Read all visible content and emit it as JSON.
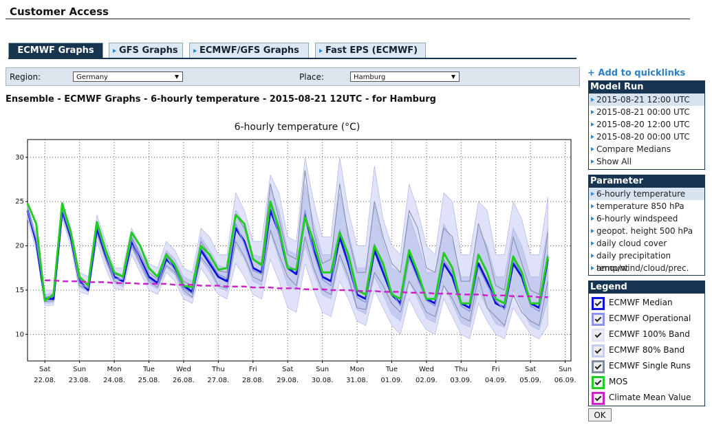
{
  "header": {
    "title": "Customer Access"
  },
  "tabs": [
    "ECMWF Graphs",
    "GFS Graphs",
    "ECMWF/GFS Graphs",
    "Fast EPS (ECMWF)"
  ],
  "filters": {
    "region_label": "Region:",
    "region": "Germany",
    "place_label": "Place:",
    "place": "Hamburg"
  },
  "page_title": "Ensemble - ECMWF Graphs - 6-hourly temperature - 2015-08-21 12UTC - for Hamburg",
  "quicklinks": "+ Add to quicklinks",
  "model_run": {
    "title": "Model Run",
    "items": [
      "2015-08-21 12:00 UTC",
      "2015-08-21 00:00 UTC",
      "2015-08-20 12:00 UTC",
      "2015-08-20 00:00 UTC",
      "Compare Medians",
      "Show All"
    ]
  },
  "parameter": {
    "title": "Parameter",
    "items": [
      "6-hourly temperature",
      "temperature 850 hPa",
      "6-hourly windspeed",
      "geopot. height 500 hPa",
      "daily cloud cover",
      "daily precipitation amount",
      "temp/wind/cloud/prec."
    ]
  },
  "legend": {
    "title": "Legend",
    "button": "OK"
  },
  "chart_data": {
    "type": "line",
    "title": "6-hourly temperature (°C)",
    "grid": true,
    "ylim": [
      7,
      32
    ],
    "yticks": [
      10,
      15,
      20,
      25,
      30
    ],
    "xlim": [
      "2015-08-21T12",
      "2015-09-06T04"
    ],
    "xticks": [
      {
        "value": "2015-08-22T00",
        "label": "Sat",
        "date": "22.08."
      },
      {
        "value": "2015-08-23T00",
        "label": "Sun",
        "date": "23.08."
      },
      {
        "value": "2015-08-24T00",
        "label": "Mon",
        "date": "24.08."
      },
      {
        "value": "2015-08-25T00",
        "label": "Tue",
        "date": "25.08."
      },
      {
        "value": "2015-08-26T00",
        "label": "Wed",
        "date": "26.08."
      },
      {
        "value": "2015-08-27T00",
        "label": "Thu",
        "date": "27.08."
      },
      {
        "value": "2015-08-28T00",
        "label": "Fri",
        "date": "28.08."
      },
      {
        "value": "2015-08-29T00",
        "label": "Sat",
        "date": "29.08."
      },
      {
        "value": "2015-08-30T00",
        "label": "Sun",
        "date": "30.08."
      },
      {
        "value": "2015-08-31T00",
        "label": "Mon",
        "date": "31.08."
      },
      {
        "value": "2015-09-01T00",
        "label": "Tue",
        "date": "01.09."
      },
      {
        "value": "2015-09-02T00",
        "label": "Wed",
        "date": "02.09."
      },
      {
        "value": "2015-09-03T00",
        "label": "Thu",
        "date": "03.09."
      },
      {
        "value": "2015-09-04T00",
        "label": "Fri",
        "date": "04.09."
      },
      {
        "value": "2015-09-05T00",
        "label": "Sat",
        "date": "05.09."
      },
      {
        "value": "2015-09-06T00",
        "label": "Sun",
        "date": "06.09."
      }
    ],
    "x": [
      "2015-08-21T12",
      "2015-08-21T18",
      "2015-08-22T00",
      "2015-08-22T06",
      "2015-08-22T12",
      "2015-08-22T18",
      "2015-08-23T00",
      "2015-08-23T06",
      "2015-08-23T12",
      "2015-08-23T18",
      "2015-08-24T00",
      "2015-08-24T06",
      "2015-08-24T12",
      "2015-08-24T18",
      "2015-08-25T00",
      "2015-08-25T06",
      "2015-08-25T12",
      "2015-08-25T18",
      "2015-08-26T00",
      "2015-08-26T06",
      "2015-08-26T12",
      "2015-08-26T18",
      "2015-08-27T00",
      "2015-08-27T06",
      "2015-08-27T12",
      "2015-08-27T18",
      "2015-08-28T00",
      "2015-08-28T06",
      "2015-08-28T12",
      "2015-08-28T18",
      "2015-08-29T00",
      "2015-08-29T06",
      "2015-08-29T12",
      "2015-08-29T18",
      "2015-08-30T00",
      "2015-08-30T06",
      "2015-08-30T12",
      "2015-08-30T18",
      "2015-08-31T00",
      "2015-08-31T06",
      "2015-08-31T12",
      "2015-08-31T18",
      "2015-09-01T00",
      "2015-09-01T06",
      "2015-09-01T12",
      "2015-09-01T18",
      "2015-09-02T00",
      "2015-09-02T06",
      "2015-09-02T12",
      "2015-09-02T18",
      "2015-09-03T00",
      "2015-09-03T06",
      "2015-09-03T12",
      "2015-09-03T18",
      "2015-09-04T00",
      "2015-09-04T06",
      "2015-09-04T12",
      "2015-09-04T18",
      "2015-09-05T00",
      "2015-09-05T06",
      "2015-09-05T12"
    ],
    "series": [
      {
        "name": "ECMWF Median",
        "kind": "line",
        "color": "#0a14d8",
        "width": 3,
        "values": [
          24,
          20.5,
          14,
          14,
          24,
          21,
          16,
          15,
          22,
          19,
          16.5,
          16,
          20.5,
          18.5,
          16.5,
          15.8,
          18.5,
          17.5,
          15.5,
          14.8,
          19.5,
          18,
          16.5,
          16,
          22,
          20.5,
          17.5,
          17,
          24,
          21.5,
          17.5,
          16.8,
          23.5,
          19.5,
          16.5,
          16,
          21,
          18,
          14.5,
          14,
          19.5,
          17,
          14.5,
          13.5,
          19,
          16.5,
          14,
          13.5,
          18,
          16.5,
          13.5,
          13,
          18,
          16,
          13.5,
          13,
          18,
          16.5,
          13.5,
          13,
          18.5
        ]
      },
      {
        "name": "ECMWF Operational",
        "kind": "line",
        "color": "#8c94e8",
        "width": 1.5,
        "values": [
          24,
          20.8,
          14.2,
          14.3,
          24.2,
          21.2,
          15.8,
          15.2,
          22.3,
          19.2,
          16.3,
          16.2,
          20.8,
          18.3,
          16.2,
          15.6,
          18.8,
          17.2,
          15.2,
          14.6,
          19.8,
          18.4,
          16.8,
          16.3,
          22.5,
          20.2,
          17.2,
          16.8,
          24.6,
          21.2,
          17.8,
          17.2,
          24,
          19.2,
          16.2,
          15.5,
          21.8,
          18.4,
          14.2,
          13.6,
          20.2,
          17.4,
          14.8,
          13.2,
          18.6,
          16.2,
          13.8,
          13.2,
          18.4,
          17,
          13.2,
          12.6,
          17.6,
          15.6,
          13.8,
          12.8,
          18.4,
          16.8,
          13.2,
          12.6,
          19
        ]
      },
      {
        "name": "ECMWF 100% Band",
        "kind": "band",
        "color": "#dfe2f8",
        "high": [
          24.5,
          21.5,
          15,
          15,
          25,
          22,
          17,
          16.5,
          23.5,
          20.5,
          17.5,
          17.5,
          22,
          20,
          18,
          17.5,
          20.5,
          19.5,
          17.5,
          17,
          22,
          21,
          19,
          19,
          26,
          24,
          20.5,
          20.5,
          28,
          26,
          21,
          20.5,
          30,
          25,
          21,
          21,
          30,
          24,
          20,
          20,
          29,
          23,
          20,
          19,
          27,
          24,
          20,
          19,
          26,
          25,
          19,
          19,
          25,
          24,
          19,
          19,
          25,
          23,
          19,
          19,
          25.5
        ],
        "low": [
          23,
          19.5,
          13.2,
          13.3,
          23,
          20,
          14.8,
          14.5,
          20.5,
          17.5,
          15.2,
          15,
          19,
          17,
          15,
          14.5,
          17,
          16,
          14,
          13.5,
          17.5,
          16,
          14.5,
          14,
          18,
          16.5,
          14.5,
          14,
          18.5,
          16,
          13,
          12.5,
          18,
          15,
          12.5,
          12,
          16,
          14,
          11.5,
          11,
          15,
          13,
          11,
          10,
          14,
          12,
          10.5,
          10,
          14,
          12,
          10,
          9.5,
          13.5,
          11.5,
          10,
          9.5,
          13,
          11.5,
          10,
          9.5,
          11
        ]
      },
      {
        "name": "ECMWF 80% Band",
        "kind": "band",
        "color": "#c6cbf0",
        "high": [
          24.3,
          21,
          14.5,
          14.6,
          24.6,
          21.6,
          16.5,
          15.8,
          22.8,
          19.8,
          17,
          16.8,
          21.3,
          19.3,
          17.3,
          16.7,
          19.5,
          18.5,
          16.5,
          16,
          21,
          19.5,
          17.8,
          17.5,
          24,
          22.5,
          19,
          18.7,
          26.5,
          24,
          19.5,
          19,
          27,
          22.5,
          19,
          19,
          26,
          21.5,
          17.5,
          17.5,
          24.5,
          20.5,
          17.5,
          17,
          23.5,
          20.5,
          17,
          17,
          22.5,
          20.5,
          16.5,
          16.5,
          22,
          20,
          16.5,
          16.5,
          22,
          20,
          16.5,
          16.5,
          22
        ],
        "low": [
          23.5,
          20,
          13.5,
          13.6,
          23.4,
          20.4,
          15.3,
          14.8,
          21.2,
          18.3,
          15.8,
          15.4,
          19.8,
          17.7,
          15.7,
          15.1,
          17.6,
          16.7,
          14.6,
          14.1,
          18.4,
          17,
          15.3,
          14.9,
          20,
          18.5,
          16,
          15.5,
          21.5,
          18.5,
          15.5,
          15,
          20,
          17,
          14.5,
          14,
          18.5,
          16,
          12.8,
          12.3,
          16.5,
          14.5,
          12.3,
          11.5,
          16,
          14,
          11.8,
          11.3,
          15.5,
          13.5,
          11.3,
          10.8,
          15,
          13,
          11.2,
          10.8,
          15,
          13,
          11,
          10.5,
          14
        ]
      },
      {
        "name": "ECMWF Single Runs",
        "kind": "runs",
        "color": "#7f8ca4",
        "runs": [
          [
            24.2,
            20.7,
            14,
            14.2,
            24.5,
            21.5,
            16.2,
            15.5,
            22.5,
            19.5,
            16.8,
            16.5,
            21,
            19,
            17,
            16.2,
            19.2,
            18,
            16,
            15.5,
            20.5,
            19,
            17.2,
            17,
            23.5,
            22,
            18.5,
            18,
            27,
            23,
            19,
            18.5,
            28.5,
            21.5,
            18,
            18.5,
            27,
            21,
            17,
            17,
            25,
            21,
            18,
            17,
            24,
            22,
            17.5,
            17,
            22,
            21,
            16,
            16,
            22.5,
            19.5,
            15.5,
            15,
            21,
            18,
            15,
            14.5,
            21.5
          ],
          [
            23.8,
            20.2,
            13.7,
            13.8,
            23.6,
            20.6,
            15.5,
            15,
            21.5,
            18.5,
            16,
            15.7,
            20,
            18,
            16,
            15.3,
            17.8,
            17,
            15,
            14.2,
            18.7,
            17.5,
            15.5,
            15.2,
            20.5,
            18.8,
            16.5,
            16,
            21.8,
            19,
            16.5,
            15.5,
            21,
            17.5,
            15,
            14.5,
            19,
            16.5,
            13,
            12.8,
            17,
            15.5,
            13.5,
            12.5,
            16,
            14.5,
            12.5,
            12,
            15.5,
            14,
            12,
            11.5,
            16.5,
            13,
            12,
            11,
            14.5,
            12.5,
            11.5,
            11,
            16
          ]
        ]
      },
      {
        "name": "MOS",
        "kind": "line",
        "color": "#22cc22",
        "width": 3,
        "values": [
          24.8,
          22.5,
          13.8,
          14.5,
          24.8,
          21.5,
          16.5,
          15.5,
          22.7,
          19.5,
          17,
          16.5,
          21.5,
          20,
          17.5,
          16.5,
          19,
          17.8,
          15.5,
          15.3,
          20,
          19,
          17.3,
          17.5,
          23.5,
          22.5,
          18.5,
          17.8,
          25,
          22,
          17.5,
          17.3,
          23.2,
          20.5,
          17,
          17,
          21.5,
          19,
          15,
          14.5,
          20,
          18,
          14.5,
          14,
          19.5,
          17,
          14,
          14,
          19.2,
          17.5,
          13.5,
          13.5,
          19,
          17,
          14,
          13.5,
          18.8,
          17,
          13.5,
          13.5,
          18.8
        ]
      },
      {
        "name": "Climate Mean Value",
        "kind": "line",
        "color": "#cc22cc",
        "width": 2.5,
        "dashed": true,
        "values": [
          null,
          null,
          16.1,
          16.1,
          16.0,
          16.0,
          16.0,
          15.9,
          15.9,
          15.9,
          15.8,
          15.8,
          15.8,
          15.7,
          15.7,
          15.7,
          15.7,
          15.6,
          15.6,
          15.6,
          15.5,
          15.5,
          15.5,
          15.4,
          15.4,
          15.4,
          15.3,
          15.3,
          15.3,
          15.2,
          15.2,
          15.2,
          15.1,
          15.1,
          15.1,
          15.0,
          15.0,
          15.0,
          14.9,
          14.9,
          14.9,
          14.8,
          14.8,
          14.8,
          14.7,
          14.7,
          14.7,
          14.6,
          14.6,
          14.6,
          14.5,
          14.5,
          14.5,
          14.4,
          14.4,
          14.4,
          14.3,
          14.3,
          14.3,
          14.2,
          14.2
        ]
      }
    ]
  }
}
